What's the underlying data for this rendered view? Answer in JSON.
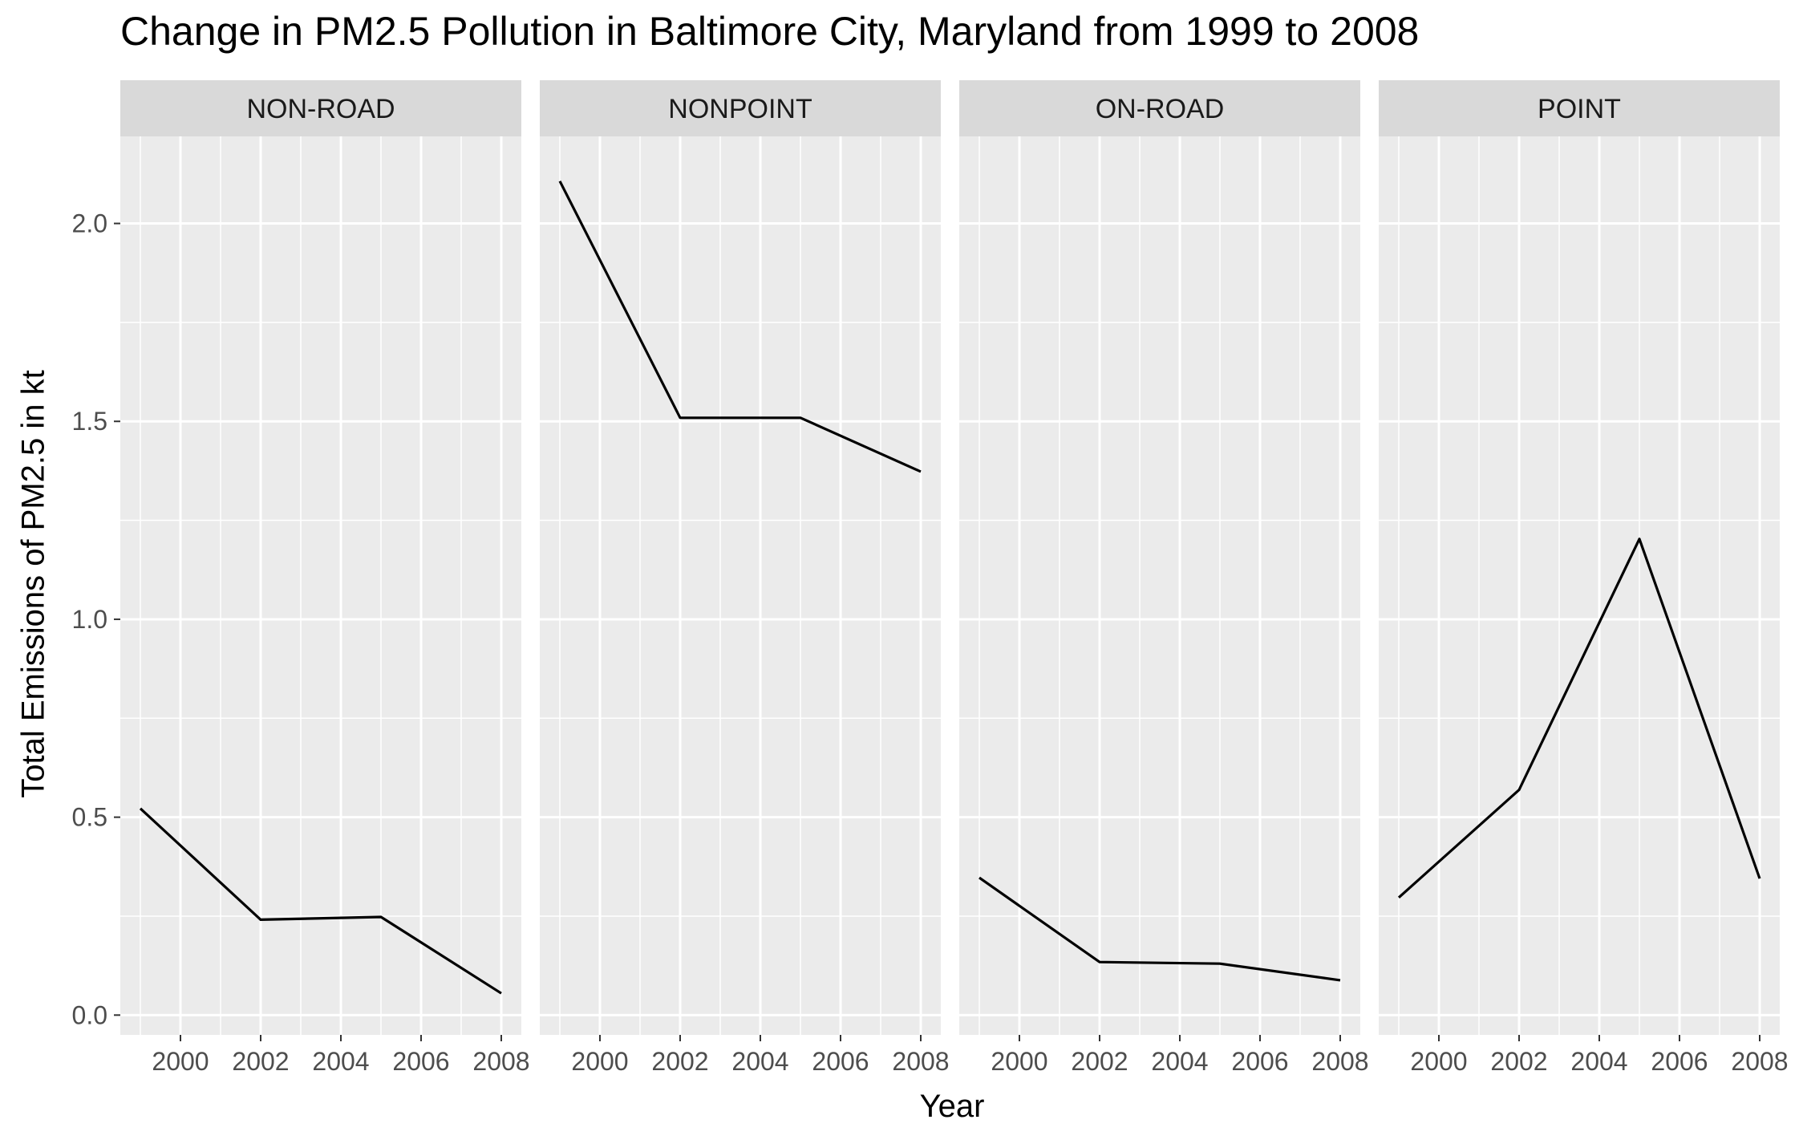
{
  "chart_data": {
    "type": "line",
    "title": "Change in PM2.5 Pollution in Baltimore City, Maryland from 1999 to 2008",
    "xlabel": "Year",
    "ylabel": "Total Emissions of PM2.5 in kt",
    "xlim": [
      1998.5,
      2008.5
    ],
    "ylim": [
      -0.05,
      2.22
    ],
    "x_ticks": [
      2000,
      2002,
      2004,
      2006,
      2008
    ],
    "x_tick_labels": [
      "2000",
      "2002",
      "2004",
      "2006",
      "2008"
    ],
    "y_ticks": [
      0.0,
      0.5,
      1.0,
      1.5,
      2.0
    ],
    "y_tick_labels": [
      "0.0",
      "0.5",
      "1.0",
      "1.5",
      "2.0"
    ],
    "grid": true,
    "facets": [
      {
        "name": "NON-ROAD",
        "x": [
          1999,
          2002,
          2005,
          2008
        ],
        "y": [
          0.522,
          0.241,
          0.248,
          0.055
        ]
      },
      {
        "name": "NONPOINT",
        "x": [
          1999,
          2002,
          2005,
          2008
        ],
        "y": [
          2.107,
          1.509,
          1.509,
          1.373
        ]
      },
      {
        "name": "ON-ROAD",
        "x": [
          1999,
          2002,
          2005,
          2008
        ],
        "y": [
          0.347,
          0.134,
          0.13,
          0.088
        ]
      },
      {
        "name": "POINT",
        "x": [
          1999,
          2002,
          2005,
          2008
        ],
        "y": [
          0.297,
          0.569,
          1.203,
          0.345
        ]
      }
    ],
    "colors": {
      "panel": "#ebebeb",
      "strip": "#d9d9d9",
      "grid": "#ffffff",
      "line": "#000000"
    }
  }
}
